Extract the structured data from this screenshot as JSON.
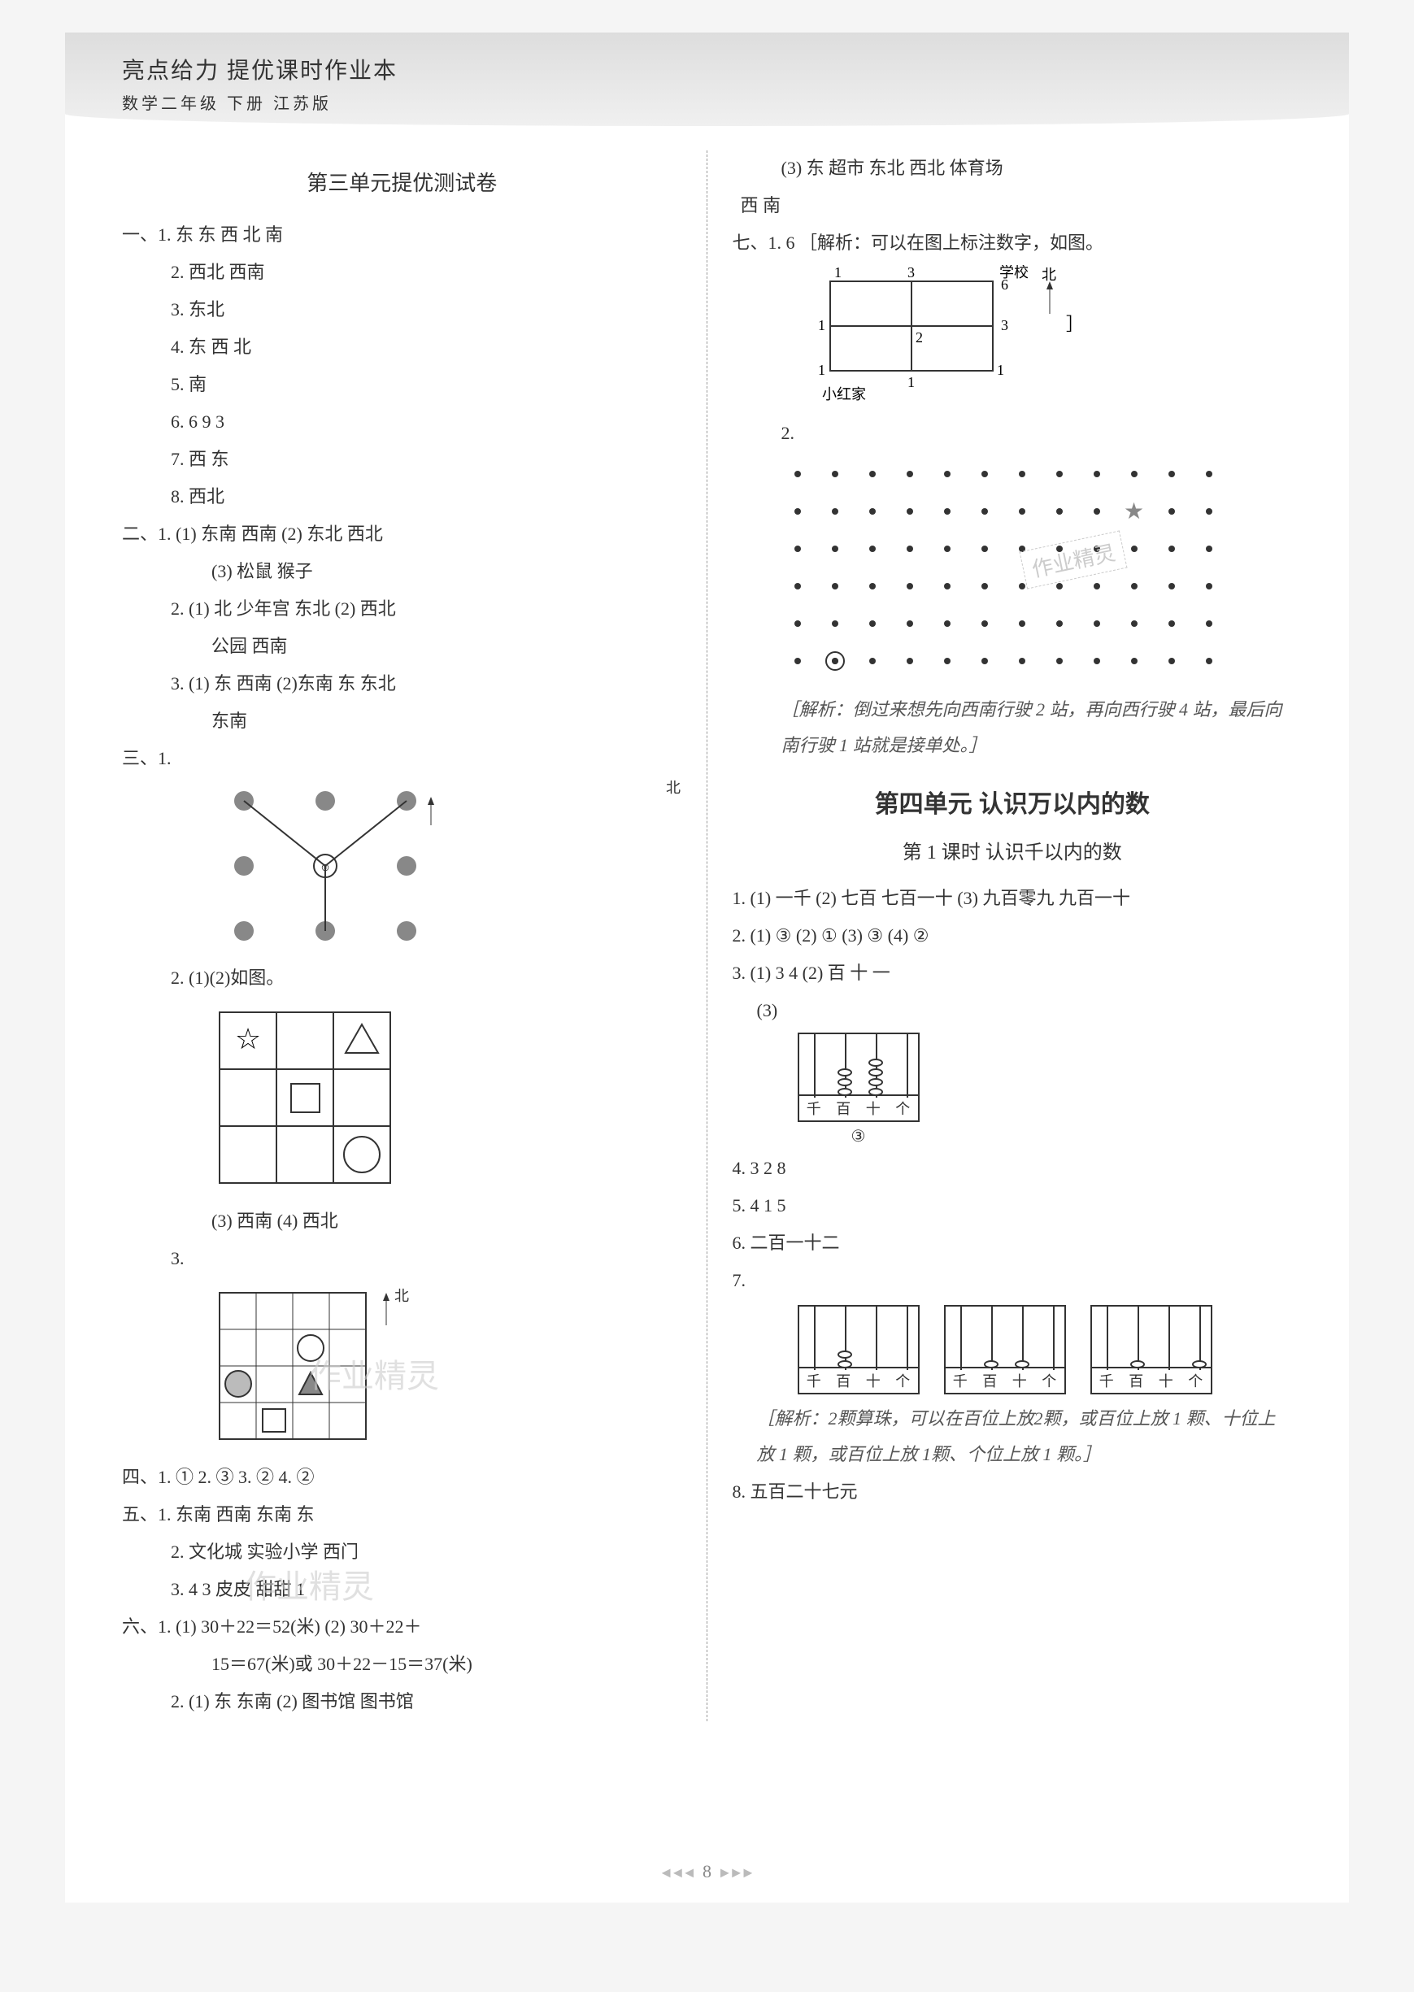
{
  "header": {
    "title": "亮点给力  提优课时作业本",
    "subtitle": "数学二年级  下册  江苏版"
  },
  "left": {
    "test_title": "第三单元提优测试卷",
    "sec1": {
      "label": "一、",
      "items": [
        "1. 东  东  西  北  南",
        "2. 西北  西南",
        "3. 东北",
        "4. 东  西  北",
        "5. 南",
        "6. 6  9  3",
        "7. 西  东",
        "8. 西北"
      ]
    },
    "sec2": {
      "label": "二、",
      "items": [
        "1. (1) 东南  西南  (2) 东北  西北",
        "(3) 松鼠  猴子",
        "2. (1) 北  少年宫  东北  (2) 西北",
        "公园  西南",
        "3. (1) 东  西南  (2)东南  东  东北",
        "东南"
      ]
    },
    "sec3": {
      "label": "三、",
      "item1_label": "1.",
      "item2": "2. (1)(2)如图。",
      "item2_sub": "(3) 西南  (4) 西北",
      "item3_label": "3.",
      "north_label": "北"
    },
    "sec4": "四、1. ①  2. ③  3. ②  4. ②",
    "sec5": {
      "label": "五、",
      "items": [
        "1. 东南  西南  东南  东",
        "2. 文化城  实验小学  西门",
        "3. 4  3  皮皮  甜甜  1"
      ]
    },
    "sec6": {
      "label": "六、",
      "items": [
        "1. (1) 30＋22＝52(米)  (2) 30＋22＋",
        "15＝67(米)或 30＋22－15＝37(米)",
        "2. (1) 东  东南  (2) 图书馆  图书馆"
      ]
    }
  },
  "right": {
    "cont1": "(3) 东  超市  东北  西北  体育场",
    "cont2": "西  南",
    "sec7": {
      "label": "七、",
      "item1": "1. 6  ［解析：可以在图上标注数字，如图。",
      "diagram_labels": {
        "school": "学校",
        "home": "小红家",
        "north": "北",
        "n1": "1",
        "n2": "3",
        "n3": "6",
        "n4": "1",
        "n5": "2",
        "n6": "3",
        "n7": "1",
        "n8": "1",
        "n9": "1",
        "n10": "1"
      },
      "item2_label": "2.",
      "analysis": "［解析：倒过来想先向西南行驶 2 站，再向西行驶 4 站，最后向南行驶 1 站就是接单处。］"
    },
    "unit4": {
      "title": "第四单元  认识万以内的数",
      "lesson": "第 1 课时  认识千以内的数",
      "items": [
        "1. (1) 一千  (2) 七百  七百一十  (3) 九百零九  九百一十",
        "2. (1) ③  (2) ①  (3) ③  (4) ②",
        "3. (1) 3  4  (2) 百  十  一",
        "(3)",
        "4. 3  2  8",
        "5. 4  1  5",
        "6. 二百一十二",
        "7.",
        "8. 五百二十七元"
      ],
      "abacus_analysis": "［解析：2颗算珠，可以在百位上放2颗，或百位上放 1 颗、十位上放 1 颗，或百位上放 1颗、个位上放 1 颗。］",
      "abacus_cols": [
        "千",
        "百",
        "十",
        "个"
      ],
      "circled_3": "③"
    }
  },
  "page_number": "8",
  "colors": {
    "text": "#333333",
    "note": "#555555",
    "grid": "#999999",
    "bg": "#ffffff"
  }
}
